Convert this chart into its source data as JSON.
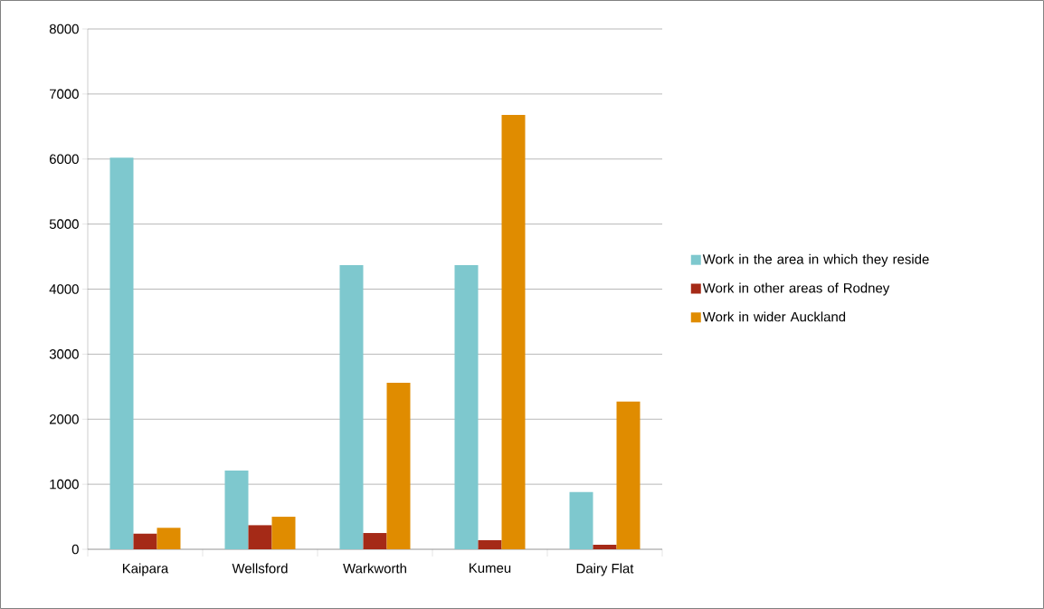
{
  "chart_data": {
    "type": "bar",
    "categories": [
      "Kaipara",
      "Wellsford",
      "Warkworth",
      "Kumeu",
      "Dairy Flat"
    ],
    "series": [
      {
        "name": "Work in the area in which they reside",
        "color": "#7ec8ce",
        "values": [
          6020,
          1210,
          4370,
          4370,
          880
        ]
      },
      {
        "name": "Work in other areas of Rodney",
        "color": "#a52a17",
        "values": [
          240,
          370,
          250,
          140,
          70
        ]
      },
      {
        "name": "Work in wider Auckland",
        "color": "#e08c00",
        "values": [
          330,
          500,
          2560,
          6680,
          2270
        ]
      }
    ],
    "ylim": [
      0,
      8000
    ],
    "yticks": [
      0,
      1000,
      2000,
      3000,
      4000,
      5000,
      6000,
      7000,
      8000
    ],
    "grid": "y",
    "legend": "right"
  }
}
